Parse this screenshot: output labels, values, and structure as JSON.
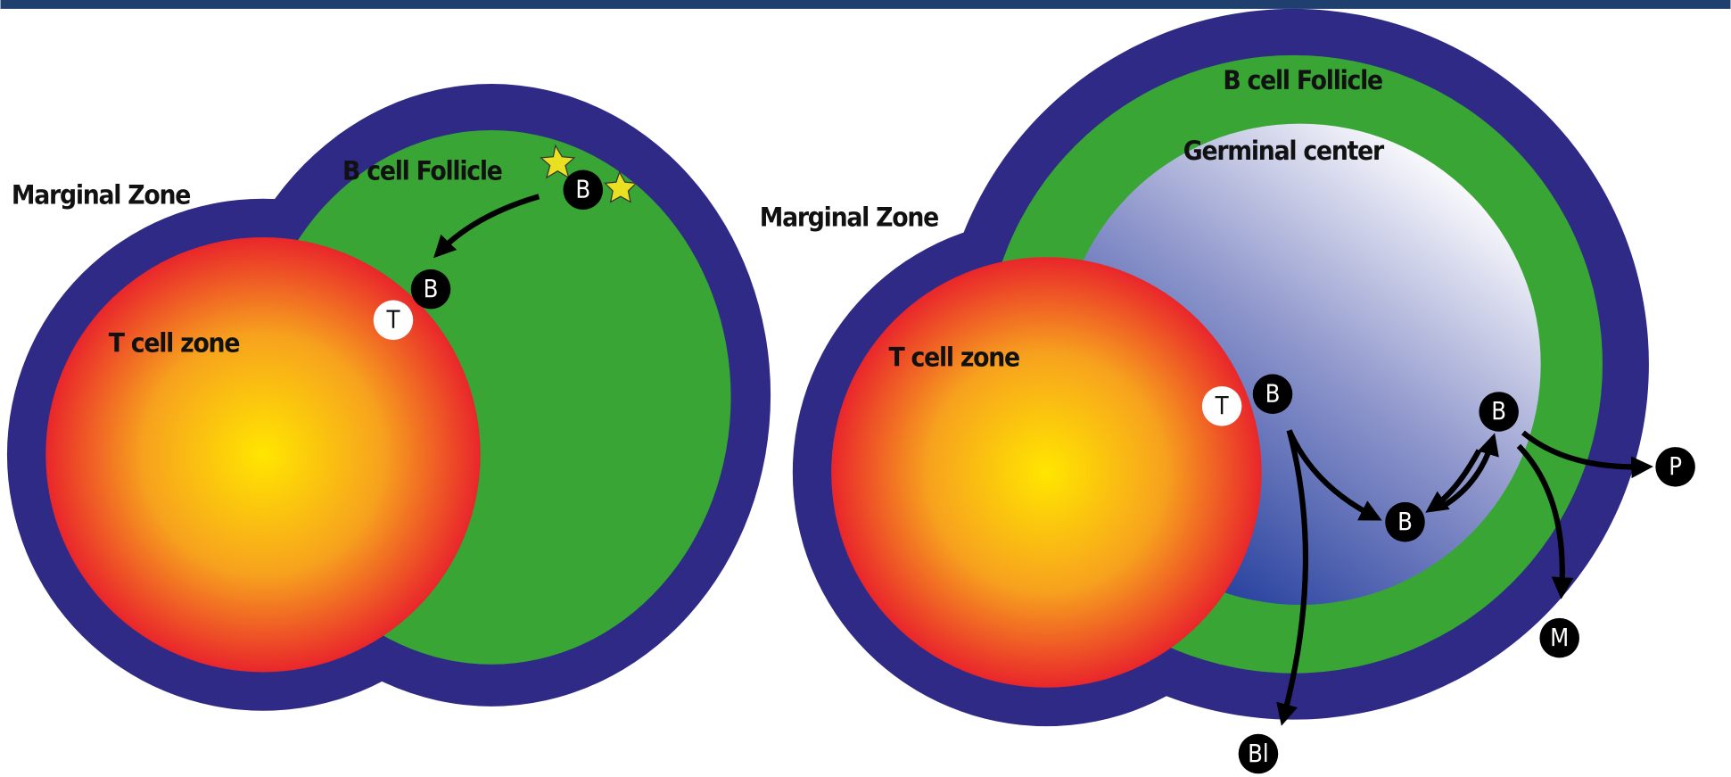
{
  "left": {
    "marginal_zone": "Marginal Zone",
    "follicle": "B cell Follicle",
    "t_zone": "T cell zone",
    "cells": [
      "B",
      "B",
      "T"
    ]
  },
  "right": {
    "marginal_zone": "Marginal Zone",
    "follicle": "B cell Follicle",
    "germinal_center": "Germinal center",
    "t_zone": "T cell zone",
    "cells": [
      "T",
      "B",
      "B",
      "B",
      "P",
      "M",
      "Bl"
    ]
  }
}
